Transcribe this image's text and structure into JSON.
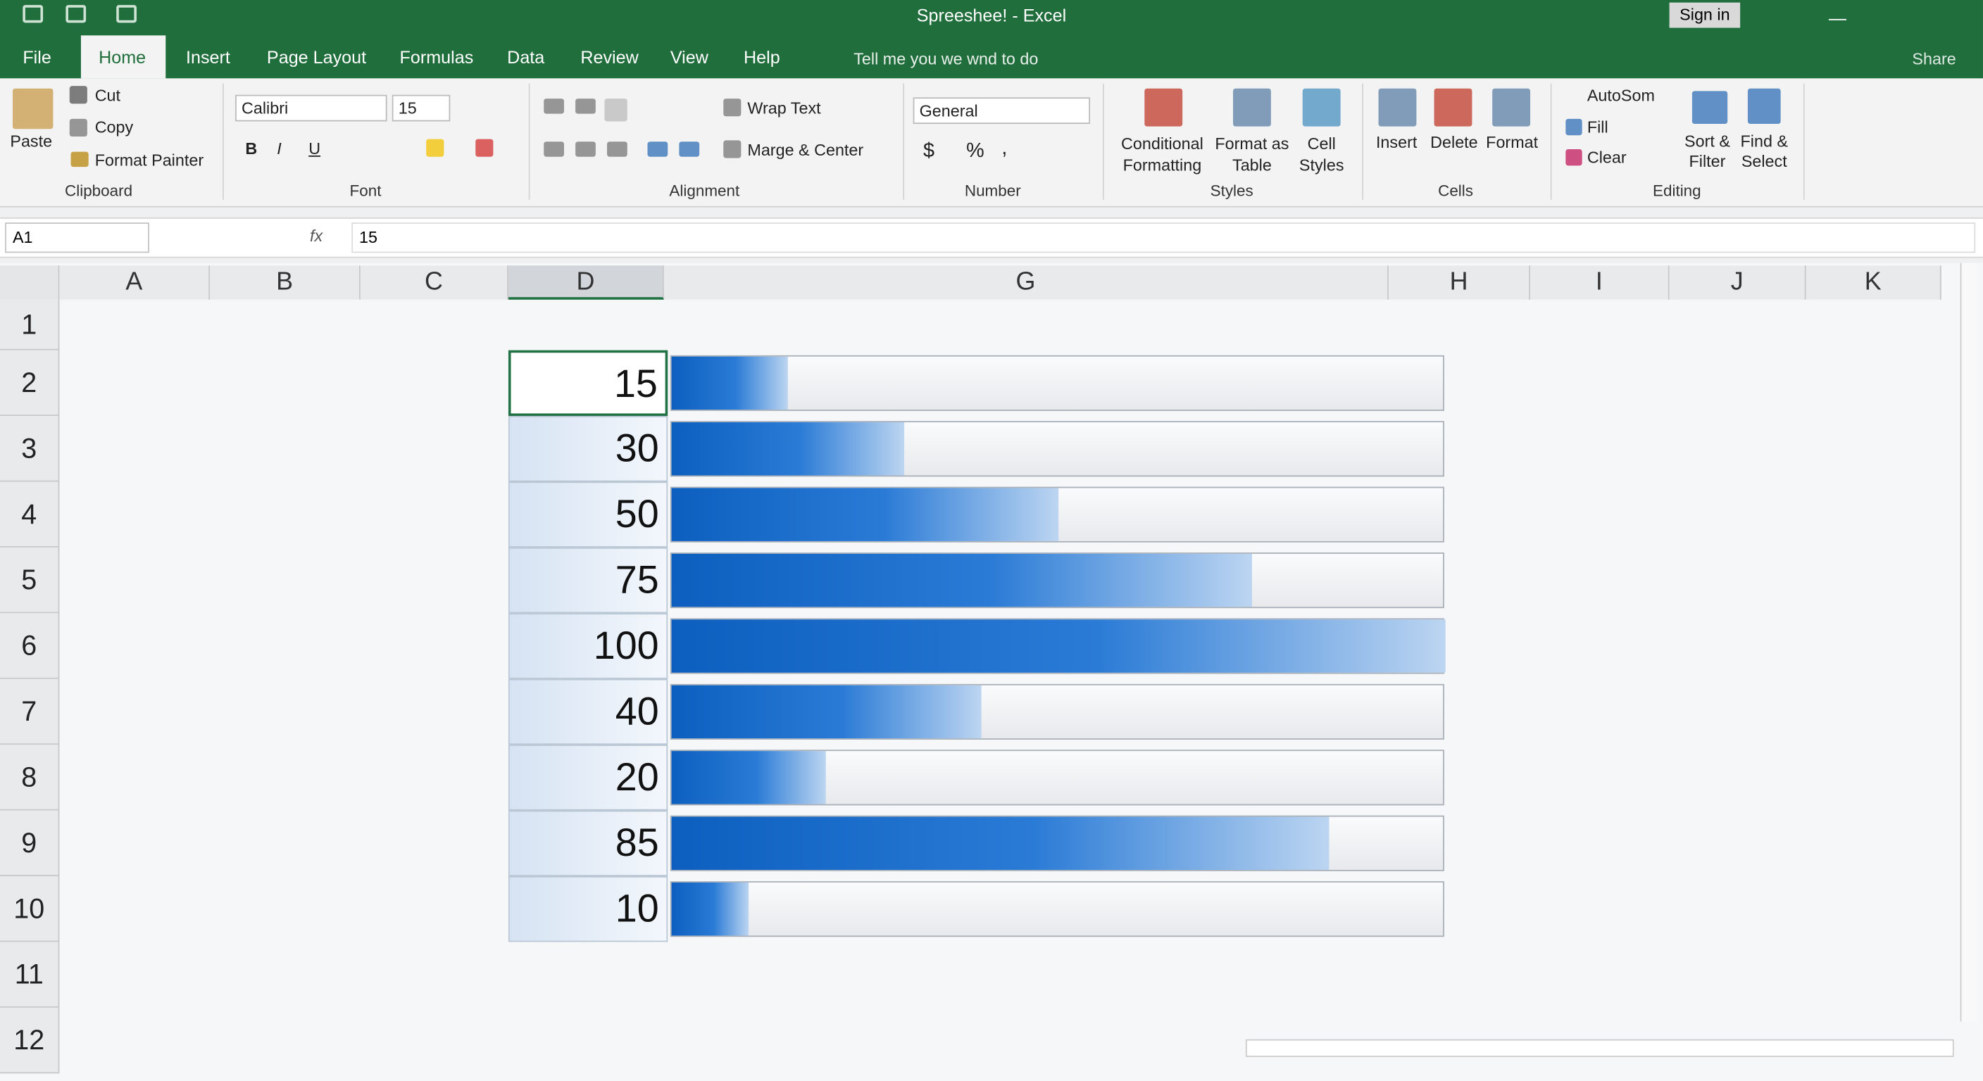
{
  "title_bar": {
    "title": "Spreeshee! - Excel",
    "sign_in": "Sign in"
  },
  "tabs": [
    "File",
    "Home",
    "Insert",
    "Page Layout",
    "Formulas",
    "Data",
    "Review",
    "View",
    "Help"
  ],
  "tell_me": "Tell me you we wnd to do",
  "share": "Share",
  "ribbon": {
    "groups": [
      {
        "label": "Clipboard",
        "items": [
          "Paste",
          "Cut",
          "Copy",
          "Format Painter"
        ]
      },
      {
        "label": "Font",
        "items": [
          "Calibri",
          "15",
          "B",
          "I",
          "U"
        ]
      },
      {
        "label": "Alignment",
        "items": [
          "Wrap Text",
          "Marge & Center"
        ]
      },
      {
        "label": "Number",
        "items": [
          "General",
          "$",
          "%",
          ","
        ]
      },
      {
        "label": "Styles",
        "items": [
          "Conditional Formatting",
          "Format as Table",
          "Cell Styles"
        ]
      },
      {
        "label": "Cells",
        "items": [
          "Insert",
          "Delete",
          "Format"
        ]
      },
      {
        "label": "Editing",
        "items": [
          "AutoSom",
          "Fill",
          "Clear",
          "Sort & Filter",
          "Find & Select"
        ]
      }
    ]
  },
  "formula_bar": {
    "name_box": "A1",
    "fx": "fx",
    "formula": "15"
  },
  "sheet": {
    "columns": [
      "A",
      "B",
      "C",
      "D",
      "G",
      "H",
      "I",
      "J",
      "K"
    ],
    "rows": [
      1,
      2,
      3,
      4,
      5,
      6,
      7,
      8,
      9,
      10,
      11,
      12
    ],
    "data_column": "D",
    "values": [
      15,
      30,
      50,
      75,
      100,
      40,
      20,
      85,
      10
    ]
  }
}
